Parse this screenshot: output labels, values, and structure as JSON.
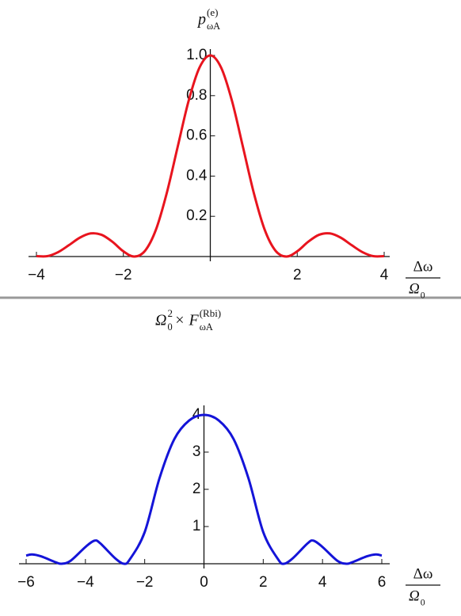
{
  "chart_data": [
    {
      "type": "line",
      "title": [
        {
          "text": "p"
        },
        {
          "sub": "ωA",
          "sup": "(e)"
        }
      ],
      "x_label": {
        "numerator": "Δω",
        "denominator": [
          {
            "text": "Ω"
          },
          {
            "sub": "0"
          }
        ]
      },
      "x": [
        -4,
        -3.75,
        -3.5,
        -3.25,
        -3,
        -2.75,
        -2.5,
        -2.25,
        -2,
        -1.75,
        -1.5,
        -1.25,
        -1,
        -0.75,
        -0.5,
        -0.25,
        0,
        0.25,
        0.5,
        0.75,
        1,
        1.25,
        1.5,
        1.75,
        2,
        2.25,
        2.5,
        2.75,
        3,
        3.25,
        3.5,
        3.75,
        4
      ],
      "series": [
        {
          "color": "#e8141e",
          "values": [
            0.002,
            0.002,
            0.022,
            0.057,
            0.094,
            0.115,
            0.108,
            0.073,
            0.026,
            0,
            0.029,
            0.134,
            0.317,
            0.546,
            0.773,
            0.939,
            1,
            0.939,
            0.773,
            0.546,
            0.317,
            0.134,
            0.029,
            0,
            0.026,
            0.073,
            0.108,
            0.115,
            0.094,
            0.057,
            0.022,
            0.002,
            0.002
          ]
        }
      ],
      "xlim": [
        -4,
        4
      ],
      "ylim": [
        0,
        1
      ],
      "xticks": [
        {
          "value": -4,
          "label": "−4"
        },
        {
          "value": -2,
          "label": "−2"
        },
        2,
        4
      ],
      "yticks": [
        0.2,
        0.4,
        0.6,
        0.8,
        {
          "value": 1,
          "label": "1.0"
        }
      ]
    },
    {
      "type": "line",
      "title": [
        {
          "text": "Ω"
        },
        {
          "sub": "0",
          "sup": "2"
        },
        {
          "text": " × F"
        },
        {
          "sub": "ωA",
          "sup": "(Rbi)"
        }
      ],
      "x_label": {
        "numerator": "Δω",
        "denominator": [
          {
            "text": "Ω"
          },
          {
            "sub": "0"
          }
        ]
      },
      "x": [
        -6,
        -5.8,
        -5.5,
        -5,
        -4.8,
        -4.5,
        -4,
        -3.7,
        -3.5,
        -3,
        -2.7,
        -2.5,
        -2,
        -1.5,
        -1,
        -0.5,
        0,
        0.5,
        1,
        1.5,
        2,
        2.5,
        2.7,
        3,
        3.5,
        3.7,
        4,
        4.5,
        4.8,
        5,
        5.5,
        5.8,
        6
      ],
      "series": [
        {
          "color": "#1414d8",
          "values": [
            0.22,
            0.25,
            0.2,
            0.04,
            0,
            0.08,
            0.45,
            0.62,
            0.55,
            0.15,
            0,
            0.12,
            0.85,
            2.3,
            3.35,
            3.85,
            4,
            3.85,
            3.35,
            2.3,
            0.85,
            0.12,
            0,
            0.15,
            0.55,
            0.62,
            0.45,
            0.08,
            0,
            0.04,
            0.2,
            0.25,
            0.22
          ]
        }
      ],
      "xlim": [
        -6,
        6
      ],
      "ylim": [
        0,
        4
      ],
      "xticks": [
        {
          "value": -6,
          "label": "−6"
        },
        {
          "value": -4,
          "label": "−4"
        },
        {
          "value": -2,
          "label": "−2"
        },
        0,
        2,
        4,
        6
      ],
      "yticks": [
        1,
        2,
        3,
        4
      ]
    }
  ]
}
